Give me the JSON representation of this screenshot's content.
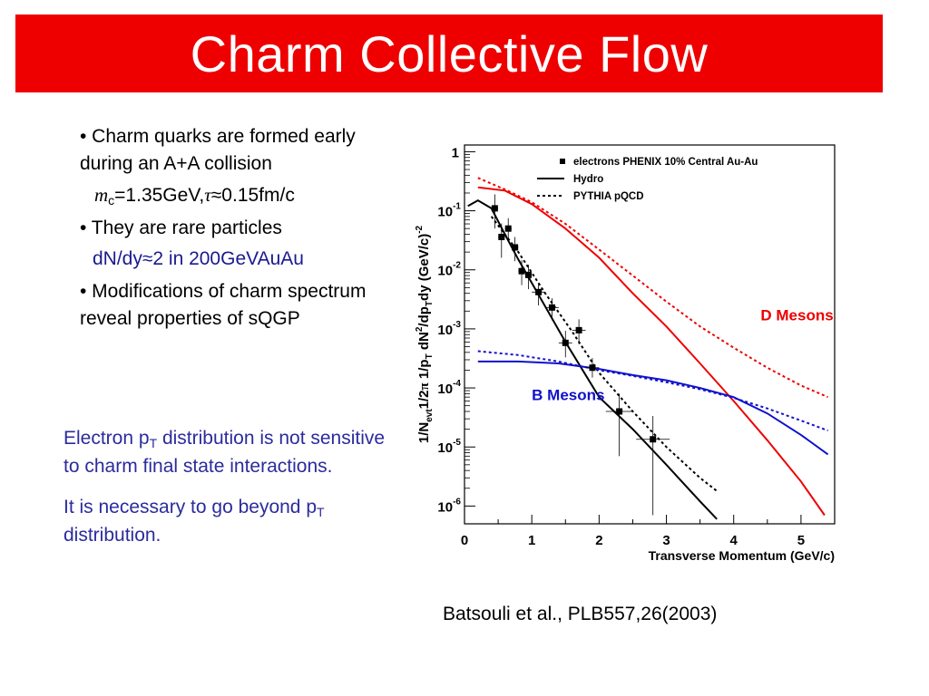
{
  "title": "Charm Collective Flow",
  "bullets": {
    "b1": "• Charm quarks are formed early during an A+A collision",
    "b1_sub_m": "m",
    "b1_sub_c": "c",
    "b1_sub_eq": "=1.35GeV,",
    "b1_sub_tau": "τ",
    "b1_sub_tau_val": "≈0.15fm/c",
    "b2": "• They are rare particles",
    "b2_sub": "dN/dy≈2 in 200GeVAuAu",
    "b3": "• Modifications of charm spectrum reveal properties of sQGP"
  },
  "note": {
    "line1_a": "Electron p",
    "line1_sub": "T",
    "line1_b": " distribution is not sensitive to charm final state interactions.",
    "line2_a": "It is necessary to go beyond p",
    "line2_sub": "T",
    "line2_b": " distribution."
  },
  "citation": "Batsouli et al., PLB557,26(2003)",
  "chart_data": {
    "type": "line",
    "xlabel": "Transverse Momentum (GeV/c)",
    "ylabel_parts": [
      "1/N",
      "evt",
      "1/2",
      "π",
      " 1/p",
      "T",
      " dN",
      "2",
      "/dp",
      "T",
      "dy (GeV/c)",
      "-2"
    ],
    "xlim": [
      0,
      5.5
    ],
    "ylim": [
      5e-07,
      1.3
    ],
    "yscale": "log",
    "x_ticks": [
      "0",
      "1",
      "2",
      "3",
      "4",
      "5"
    ],
    "x_tick_values": [
      0,
      1,
      2,
      3,
      4,
      5
    ],
    "y_ticks": [
      {
        "value": 1,
        "base": "1",
        "exp": ""
      },
      {
        "value": 0.1,
        "base": "10",
        "exp": "-1"
      },
      {
        "value": 0.01,
        "base": "10",
        "exp": "-2"
      },
      {
        "value": 0.001,
        "base": "10",
        "exp": "-3"
      },
      {
        "value": 0.0001,
        "base": "10",
        "exp": "-4"
      },
      {
        "value": 1e-05,
        "base": "10",
        "exp": "-5"
      },
      {
        "value": 1e-06,
        "base": "10",
        "exp": "-6"
      }
    ],
    "legend": {
      "placement": "top-right",
      "entries": [
        {
          "label": "electrons PHENIX 10% Central Au-Au",
          "style": "marker"
        },
        {
          "label": "Hydro",
          "style": "solid"
        },
        {
          "label": "PYTHIA pQCD",
          "style": "dotted"
        }
      ]
    },
    "annotations": [
      {
        "text": "D Mesons",
        "color": "#ee0000",
        "x": 4.4,
        "y": 0.0014
      },
      {
        "text": "B Mesons",
        "color": "#1111cc",
        "x": 1.0,
        "y": 6.2e-05
      }
    ],
    "colors": {
      "d": "#ee0000",
      "b": "#1111cc",
      "black": "#000000"
    },
    "series": [
      {
        "name": "electrons PHENIX 10% Central Au-Au",
        "kind": "points",
        "x": [
          0.45,
          0.55,
          0.65,
          0.75,
          0.85,
          0.95,
          1.1,
          1.3,
          1.5,
          1.7,
          1.9,
          2.3,
          2.8
        ],
        "y": [
          0.11,
          0.036,
          0.05,
          0.024,
          0.0095,
          0.0082,
          0.0042,
          0.0023,
          0.00058,
          0.00095,
          0.00022,
          4e-05,
          1.35e-05
        ],
        "yerr_low": [
          0.06,
          0.02,
          0.018,
          0.01,
          0.004,
          0.0035,
          0.0017,
          0.0009,
          0.00025,
          0.0004,
          7e-05,
          3.3e-05,
          1.28e-05
        ],
        "yerr_high": [
          0.08,
          0.025,
          0.025,
          0.012,
          0.005,
          0.004,
          0.0018,
          0.001,
          0.00035,
          0.0005,
          0.0001,
          4e-05,
          2e-05
        ],
        "xerr": [
          0.05,
          0.05,
          0.05,
          0.05,
          0.05,
          0.05,
          0.1,
          0.1,
          0.1,
          0.1,
          0.1,
          0.2,
          0.25
        ]
      },
      {
        "name": "Hydro",
        "kind": "black-solid",
        "x": [
          0.05,
          0.2,
          0.4,
          0.6,
          0.8,
          1.0,
          1.5,
          2.0,
          2.5,
          3.0,
          3.5,
          3.75
        ],
        "y": [
          0.12,
          0.15,
          0.11,
          0.04,
          0.015,
          0.006,
          0.0006,
          7e-05,
          2e-05,
          5e-06,
          1.2e-06,
          6e-07
        ]
      },
      {
        "name": "PYTHIA pQCD",
        "kind": "black-dotted",
        "x": [
          0.4,
          0.8,
          1.2,
          1.6,
          2.0,
          2.5,
          3.0,
          3.5,
          3.75
        ],
        "y": [
          0.08,
          0.02,
          0.004,
          0.0009,
          0.00018,
          4e-05,
          1e-05,
          3e-06,
          1.8e-06
        ]
      },
      {
        "name": "D Mesons Hydro",
        "kind": "d-solid",
        "x": [
          0.2,
          0.6,
          1.0,
          1.5,
          2.0,
          2.5,
          3.0,
          3.5,
          4.0,
          4.5,
          5.0,
          5.35
        ],
        "y": [
          0.25,
          0.22,
          0.13,
          0.05,
          0.016,
          0.004,
          0.0011,
          0.00026,
          6e-05,
          1.3e-05,
          2.6e-06,
          7e-07
        ]
      },
      {
        "name": "D Mesons PYTHIA",
        "kind": "d-dotted",
        "x": [
          0.2,
          0.6,
          1.0,
          1.5,
          2.0,
          2.5,
          3.0,
          3.5,
          4.0,
          4.5,
          5.0,
          5.4
        ],
        "y": [
          0.36,
          0.23,
          0.14,
          0.06,
          0.022,
          0.008,
          0.0029,
          0.0011,
          0.00048,
          0.00022,
          0.00011,
          7e-05
        ]
      },
      {
        "name": "B Mesons Hydro",
        "kind": "b-solid",
        "x": [
          0.2,
          0.8,
          1.4,
          2.0,
          2.5,
          3.0,
          3.5,
          4.0,
          4.5,
          5.0,
          5.4
        ],
        "y": [
          0.00028,
          0.00028,
          0.00026,
          0.00021,
          0.000165,
          0.000135,
          0.0001,
          7e-05,
          3.7e-05,
          1.6e-05,
          7.5e-06
        ]
      },
      {
        "name": "B Mesons PYTHIA",
        "kind": "b-dotted",
        "x": [
          0.2,
          0.8,
          1.4,
          2.0,
          2.5,
          3.0,
          3.5,
          4.0,
          4.5,
          5.0,
          5.4
        ],
        "y": [
          0.00042,
          0.00036,
          0.00028,
          0.0002,
          0.00016,
          0.000125,
          9.5e-05,
          6.8e-05,
          4.5e-05,
          2.8e-05,
          1.9e-05
        ]
      }
    ]
  }
}
